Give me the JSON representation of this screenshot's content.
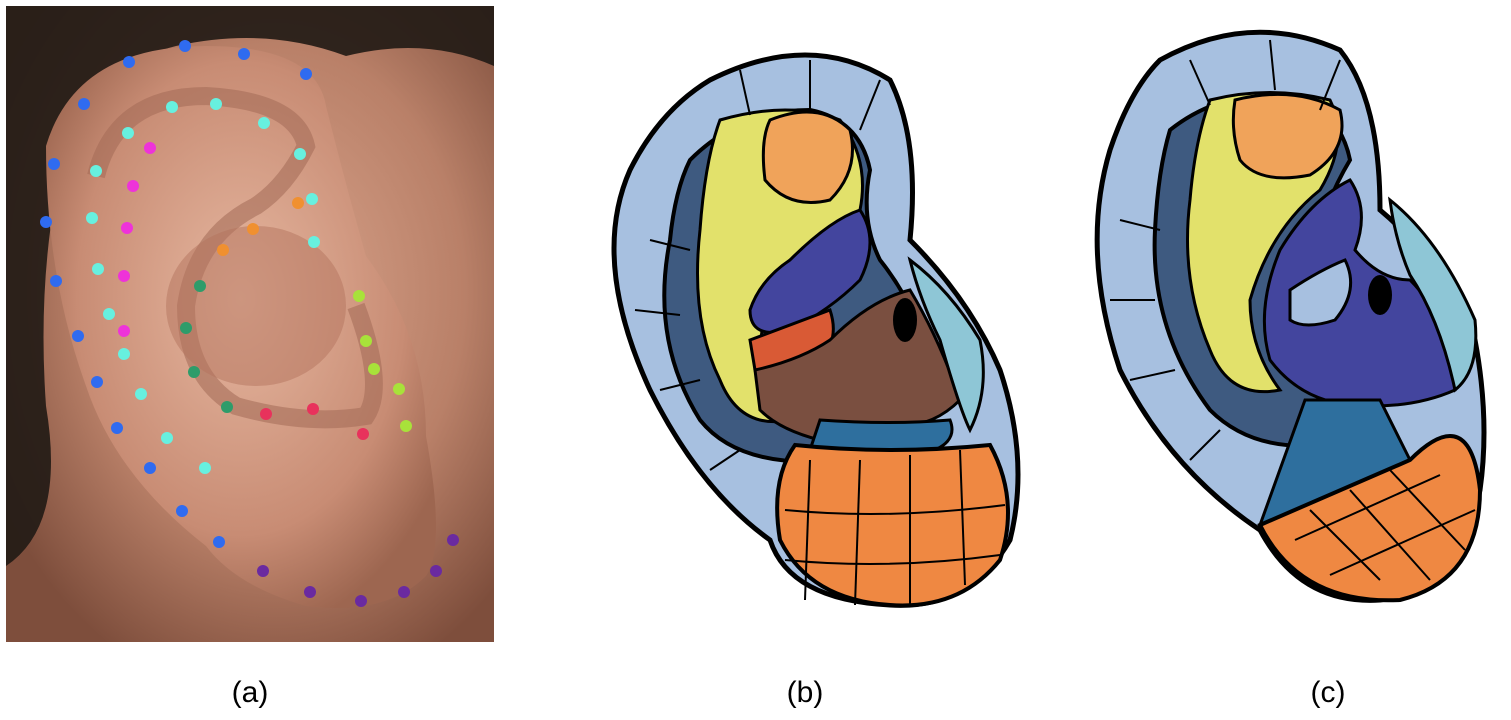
{
  "figure": {
    "panels": [
      {
        "label": "(a)",
        "type": "photo-with-landmarks"
      },
      {
        "label": "(b)",
        "type": "segmented-ear-map"
      },
      {
        "label": "(c)",
        "type": "segmented-ear-map"
      }
    ]
  },
  "colors": {
    "skin": "#c9907a",
    "hair": "#1f1a16",
    "helix": "#a7c0e0",
    "antihelix_dark": "#3e5a80",
    "concha_yellow": "#e2e16b",
    "triangular_orange": "#f0a35a",
    "scapha_purple": "#43459e",
    "brown": "#7a4f40",
    "red": "#d95a35",
    "tragus_blue": "#8ec6d6",
    "intertragic": "#2e6f9e",
    "lobe_orange": "#ef8842",
    "outline": "#000000"
  },
  "landmark_colors": [
    "#2f6bf0",
    "#67f0df",
    "#ee33d9",
    "#f09030",
    "#2e9c6a",
    "#a8e23a",
    "#e8325c",
    "#6a2aa0"
  ]
}
